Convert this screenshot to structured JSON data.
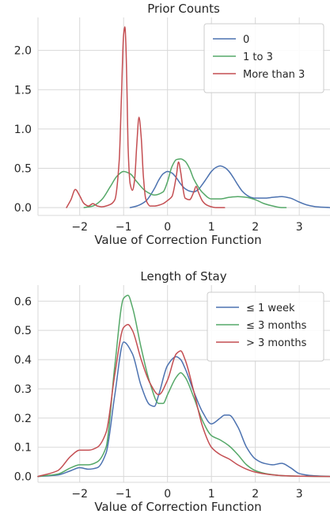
{
  "chart_data": [
    {
      "type": "line",
      "title": "Prior Counts",
      "xlabel": "Value of Correction Function",
      "ylabel": "",
      "xlim": [
        -2.95,
        3.7
      ],
      "ylim": [
        -0.1,
        2.42
      ],
      "xticks": [
        -2,
        -1,
        0,
        1,
        2,
        3
      ],
      "yticks": [
        0.0,
        0.5,
        1.0,
        1.5,
        2.0
      ],
      "xtick_labels": [
        "−2",
        "−1",
        "0",
        "1",
        "2",
        "3"
      ],
      "ytick_labels": [
        "0.0",
        "0.5",
        "1.0",
        "1.5",
        "2.0"
      ],
      "grid": true,
      "legend_position": "top-right",
      "series": [
        {
          "name": "0",
          "color": "#4c72b0",
          "x": [
            -0.85,
            -0.7,
            -0.5,
            -0.3,
            -0.2,
            -0.1,
            0.0,
            0.1,
            0.2,
            0.3,
            0.4,
            0.5,
            0.6,
            0.7,
            0.8,
            0.9,
            1.0,
            1.1,
            1.2,
            1.3,
            1.4,
            1.5,
            1.6,
            1.7,
            1.8,
            1.9,
            2.0,
            2.2,
            2.4,
            2.6,
            2.8,
            3.0,
            3.2,
            3.4,
            3.7
          ],
          "y": [
            0.0,
            0.02,
            0.08,
            0.24,
            0.35,
            0.43,
            0.46,
            0.44,
            0.38,
            0.3,
            0.24,
            0.21,
            0.2,
            0.23,
            0.3,
            0.38,
            0.46,
            0.51,
            0.53,
            0.51,
            0.46,
            0.38,
            0.29,
            0.21,
            0.16,
            0.13,
            0.12,
            0.12,
            0.13,
            0.14,
            0.12,
            0.07,
            0.03,
            0.01,
            0.0
          ]
        },
        {
          "name": "1 to 3",
          "color": "#55a868",
          "x": [
            -1.9,
            -1.7,
            -1.5,
            -1.3,
            -1.15,
            -1.0,
            -0.85,
            -0.7,
            -0.5,
            -0.3,
            -0.1,
            0.0,
            0.1,
            0.2,
            0.3,
            0.4,
            0.5,
            0.6,
            0.8,
            1.0,
            1.2,
            1.4,
            1.6,
            1.8,
            2.0,
            2.2,
            2.4,
            2.6,
            2.7
          ],
          "y": [
            0.0,
            0.02,
            0.1,
            0.27,
            0.4,
            0.46,
            0.43,
            0.33,
            0.21,
            0.16,
            0.2,
            0.33,
            0.52,
            0.61,
            0.62,
            0.59,
            0.5,
            0.36,
            0.19,
            0.11,
            0.11,
            0.13,
            0.14,
            0.13,
            0.1,
            0.05,
            0.02,
            0.0,
            0.0
          ]
        },
        {
          "name": "More than 3",
          "color": "#c44e52",
          "x": [
            -2.3,
            -2.2,
            -2.1,
            -2.0,
            -1.9,
            -1.8,
            -1.7,
            -1.6,
            -1.5,
            -1.3,
            -1.2,
            -1.1,
            -1.05,
            -1.0,
            -0.97,
            -0.95,
            -0.92,
            -0.9,
            -0.85,
            -0.8,
            -0.75,
            -0.7,
            -0.65,
            -0.6,
            -0.55,
            -0.5,
            -0.45,
            -0.4,
            -0.3,
            -0.2,
            -0.1,
            0.0,
            0.1,
            0.2,
            0.25,
            0.3,
            0.35,
            0.4,
            0.5,
            0.6,
            0.65,
            0.7,
            0.8,
            0.9,
            1.0,
            1.1,
            1.2,
            1.3
          ],
          "y": [
            0.0,
            0.1,
            0.23,
            0.15,
            0.05,
            0.02,
            0.05,
            0.02,
            0.01,
            0.04,
            0.1,
            0.6,
            1.4,
            2.2,
            2.3,
            2.1,
            1.4,
            0.8,
            0.3,
            0.22,
            0.35,
            0.8,
            1.15,
            0.9,
            0.4,
            0.12,
            0.05,
            0.02,
            0.02,
            0.03,
            0.05,
            0.09,
            0.14,
            0.4,
            0.58,
            0.45,
            0.25,
            0.12,
            0.1,
            0.2,
            0.27,
            0.2,
            0.08,
            0.03,
            0.01,
            0.0,
            0.0,
            0.0
          ]
        }
      ]
    },
    {
      "type": "line",
      "title": "Length of Stay",
      "xlabel": "Value of Correction Function",
      "ylabel": "",
      "xlim": [
        -2.95,
        3.7
      ],
      "ylim": [
        -0.02,
        0.655
      ],
      "xticks": [
        -2,
        -1,
        0,
        1,
        2,
        3
      ],
      "yticks": [
        0.0,
        0.1,
        0.2,
        0.3,
        0.4,
        0.5,
        0.6
      ],
      "xtick_labels": [
        "−2",
        "−1",
        "0",
        "1",
        "2",
        "3"
      ],
      "ytick_labels": [
        "0.0",
        "0.1",
        "0.2",
        "0.3",
        "0.4",
        "0.5",
        "0.6"
      ],
      "grid": true,
      "legend_position": "top-right",
      "series": [
        {
          "name": "≤ 1 week",
          "color": "#4c72b0",
          "x": [
            -2.95,
            -2.5,
            -2.2,
            -2.0,
            -1.8,
            -1.6,
            -1.4,
            -1.2,
            -1.0,
            -0.8,
            -0.6,
            -0.4,
            -0.3,
            -0.2,
            0.0,
            0.2,
            0.3,
            0.4,
            0.6,
            0.8,
            1.0,
            1.2,
            1.3,
            1.4,
            1.6,
            1.8,
            2.0,
            2.2,
            2.4,
            2.6,
            2.8,
            3.0,
            3.3,
            3.7
          ],
          "y": [
            0.0,
            0.005,
            0.02,
            0.03,
            0.025,
            0.03,
            0.08,
            0.28,
            0.46,
            0.42,
            0.31,
            0.245,
            0.24,
            0.28,
            0.38,
            0.41,
            0.4,
            0.37,
            0.29,
            0.22,
            0.18,
            0.2,
            0.21,
            0.21,
            0.17,
            0.1,
            0.06,
            0.045,
            0.04,
            0.045,
            0.03,
            0.01,
            0.003,
            0.0
          ]
        },
        {
          "name": "≤ 3 months",
          "color": "#55a868",
          "x": [
            -2.95,
            -2.5,
            -2.2,
            -2.0,
            -1.8,
            -1.6,
            -1.4,
            -1.2,
            -1.0,
            -0.9,
            -0.8,
            -0.6,
            -0.4,
            -0.2,
            -0.1,
            0.0,
            0.2,
            0.3,
            0.4,
            0.6,
            0.8,
            1.0,
            1.2,
            1.4,
            1.6,
            1.8,
            2.0,
            2.3,
            2.6,
            3.0,
            3.7
          ],
          "y": [
            0.0,
            0.008,
            0.03,
            0.04,
            0.04,
            0.05,
            0.1,
            0.38,
            0.61,
            0.62,
            0.58,
            0.44,
            0.32,
            0.25,
            0.25,
            0.28,
            0.34,
            0.355,
            0.34,
            0.27,
            0.19,
            0.14,
            0.125,
            0.105,
            0.075,
            0.04,
            0.02,
            0.008,
            0.003,
            0.001,
            0.0
          ]
        },
        {
          "name": "> 3 months",
          "color": "#c44e52",
          "x": [
            -2.95,
            -2.5,
            -2.2,
            -2.0,
            -1.8,
            -1.6,
            -1.4,
            -1.2,
            -1.0,
            -0.9,
            -0.8,
            -0.6,
            -0.4,
            -0.2,
            0.0,
            0.2,
            0.3,
            0.4,
            0.6,
            0.8,
            1.0,
            1.2,
            1.4,
            1.6,
            1.8,
            2.0,
            2.3,
            2.6,
            3.0,
            3.7
          ],
          "y": [
            0.0,
            0.02,
            0.07,
            0.09,
            0.09,
            0.1,
            0.15,
            0.35,
            0.51,
            0.52,
            0.5,
            0.4,
            0.32,
            0.28,
            0.33,
            0.42,
            0.43,
            0.4,
            0.29,
            0.17,
            0.1,
            0.075,
            0.06,
            0.04,
            0.025,
            0.015,
            0.007,
            0.003,
            0.001,
            0.0
          ]
        }
      ]
    }
  ]
}
